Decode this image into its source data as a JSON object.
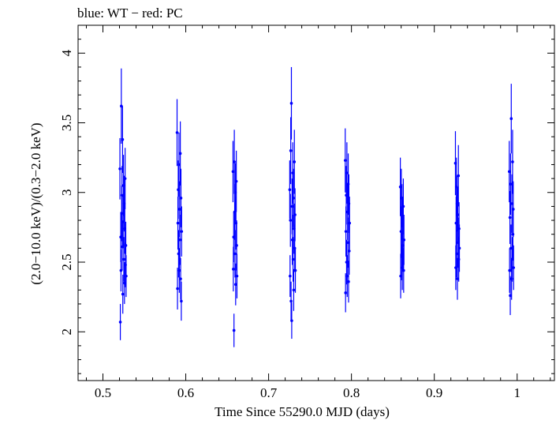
{
  "chart_data": {
    "type": "scatter",
    "title": "blue: WT − red: PC",
    "xlabel": "Time Since 55290.0 MJD (days)",
    "ylabel": "(2.0−10.0 keV)/(0.3−2.0 keV)",
    "xlim": [
      0.47,
      1.045
    ],
    "ylim": [
      1.65,
      4.2
    ],
    "xticks": [
      0.5,
      0.6,
      0.7,
      0.8,
      0.9,
      1.0
    ],
    "xtick_labels": [
      "0.5",
      "0.6",
      "0.7",
      "0.8",
      "0.9",
      "1"
    ],
    "yticks": [
      2.0,
      2.5,
      3.0,
      3.5,
      4.0
    ],
    "ytick_labels": [
      "2",
      "2.5",
      "3",
      "3.5",
      "4"
    ],
    "grid": false,
    "legend": "none",
    "colors": {
      "WT": "#0000ff",
      "PC": "#ff0000"
    },
    "series": [
      {
        "name": "WT",
        "points": [
          [
            0.5205,
            3.17,
            0.22
          ],
          [
            0.521,
            2.07,
            0.13
          ],
          [
            0.5215,
            2.68,
            0.18
          ],
          [
            0.5218,
            2.44,
            0.15
          ],
          [
            0.5222,
            3.62,
            0.27
          ],
          [
            0.5226,
            2.85,
            0.2
          ],
          [
            0.523,
            2.98,
            0.21
          ],
          [
            0.5233,
            2.61,
            0.17
          ],
          [
            0.5237,
            3.38,
            0.24
          ],
          [
            0.524,
            2.27,
            0.14
          ],
          [
            0.5244,
            2.79,
            0.19
          ],
          [
            0.5248,
            3.05,
            0.22
          ],
          [
            0.5252,
            2.52,
            0.16
          ],
          [
            0.5256,
            2.92,
            0.2
          ],
          [
            0.526,
            2.35,
            0.15
          ],
          [
            0.5264,
            2.74,
            0.18
          ],
          [
            0.5268,
            3.1,
            0.22
          ],
          [
            0.5272,
            2.48,
            0.16
          ],
          [
            0.5276,
            2.62,
            0.17
          ],
          [
            0.528,
            2.4,
            0.15
          ],
          [
            0.5895,
            3.43,
            0.24
          ],
          [
            0.59,
            2.31,
            0.15
          ],
          [
            0.5905,
            2.78,
            0.19
          ],
          [
            0.5909,
            3.02,
            0.21
          ],
          [
            0.5913,
            2.56,
            0.17
          ],
          [
            0.5918,
            3.2,
            0.23
          ],
          [
            0.5922,
            2.44,
            0.16
          ],
          [
            0.5926,
            2.88,
            0.2
          ],
          [
            0.593,
            2.66,
            0.18
          ],
          [
            0.5934,
            3.28,
            0.23
          ],
          [
            0.5938,
            2.38,
            0.15
          ],
          [
            0.5942,
            2.96,
            0.21
          ],
          [
            0.5946,
            2.22,
            0.14
          ],
          [
            0.595,
            2.72,
            0.18
          ],
          [
            0.657,
            3.15,
            0.22
          ],
          [
            0.6574,
            2.45,
            0.16
          ],
          [
            0.6578,
            2.68,
            0.18
          ],
          [
            0.6582,
            2.01,
            0.12
          ],
          [
            0.6586,
            3.22,
            0.23
          ],
          [
            0.659,
            2.86,
            0.2
          ],
          [
            0.6594,
            2.56,
            0.17
          ],
          [
            0.6598,
            3.0,
            0.21
          ],
          [
            0.6602,
            2.34,
            0.15
          ],
          [
            0.6606,
            2.78,
            0.19
          ],
          [
            0.661,
            3.08,
            0.22
          ],
          [
            0.6614,
            2.62,
            0.18
          ],
          [
            0.6618,
            2.4,
            0.16
          ],
          [
            0.7255,
            3.02,
            0.21
          ],
          [
            0.7259,
            2.4,
            0.15
          ],
          [
            0.7263,
            2.8,
            0.19
          ],
          [
            0.7267,
            3.3,
            0.24
          ],
          [
            0.7271,
            2.22,
            0.14
          ],
          [
            0.7275,
            3.64,
            0.26
          ],
          [
            0.7279,
            2.08,
            0.13
          ],
          [
            0.7283,
            2.9,
            0.2
          ],
          [
            0.7287,
            2.66,
            0.18
          ],
          [
            0.7291,
            3.14,
            0.22
          ],
          [
            0.7295,
            2.52,
            0.16
          ],
          [
            0.7299,
            2.96,
            0.21
          ],
          [
            0.7303,
            2.3,
            0.15
          ],
          [
            0.7307,
            2.74,
            0.18
          ],
          [
            0.7311,
            3.22,
            0.23
          ],
          [
            0.7315,
            2.6,
            0.17
          ],
          [
            0.7319,
            2.84,
            0.19
          ],
          [
            0.7323,
            2.44,
            0.16
          ],
          [
            0.7925,
            3.23,
            0.23
          ],
          [
            0.7929,
            2.28,
            0.14
          ],
          [
            0.7933,
            2.72,
            0.18
          ],
          [
            0.7937,
            2.98,
            0.21
          ],
          [
            0.7941,
            2.5,
            0.16
          ],
          [
            0.7945,
            3.14,
            0.22
          ],
          [
            0.7949,
            2.4,
            0.15
          ],
          [
            0.7953,
            2.86,
            0.2
          ],
          [
            0.7957,
            2.64,
            0.18
          ],
          [
            0.7961,
            3.06,
            0.22
          ],
          [
            0.7965,
            2.36,
            0.15
          ],
          [
            0.7969,
            2.92,
            0.21
          ],
          [
            0.7973,
            2.58,
            0.17
          ],
          [
            0.7977,
            2.78,
            0.19
          ],
          [
            0.859,
            3.04,
            0.21
          ],
          [
            0.8594,
            2.4,
            0.16
          ],
          [
            0.8598,
            2.72,
            0.18
          ],
          [
            0.8602,
            2.96,
            0.21
          ],
          [
            0.8606,
            2.54,
            0.17
          ],
          [
            0.861,
            2.86,
            0.2
          ],
          [
            0.8614,
            2.46,
            0.16
          ],
          [
            0.8618,
            2.78,
            0.19
          ],
          [
            0.8622,
            2.62,
            0.18
          ],
          [
            0.8626,
            2.9,
            0.2
          ],
          [
            0.863,
            2.44,
            0.16
          ],
          [
            0.8634,
            2.66,
            0.18
          ],
          [
            0.9255,
            3.21,
            0.23
          ],
          [
            0.9259,
            2.46,
            0.16
          ],
          [
            0.9263,
            2.78,
            0.19
          ],
          [
            0.9267,
            3.04,
            0.21
          ],
          [
            0.9271,
            2.56,
            0.17
          ],
          [
            0.9275,
            2.92,
            0.2
          ],
          [
            0.9279,
            2.38,
            0.15
          ],
          [
            0.9283,
            2.84,
            0.2
          ],
          [
            0.9287,
            2.64,
            0.18
          ],
          [
            0.9291,
            3.12,
            0.22
          ],
          [
            0.9295,
            2.52,
            0.16
          ],
          [
            0.9299,
            2.74,
            0.19
          ],
          [
            0.9303,
            2.6,
            0.17
          ],
          [
            0.9905,
            3.15,
            0.22
          ],
          [
            0.9909,
            2.44,
            0.16
          ],
          [
            0.9913,
            2.82,
            0.19
          ],
          [
            0.9917,
            2.26,
            0.14
          ],
          [
            0.9921,
            3.06,
            0.22
          ],
          [
            0.9925,
            2.6,
            0.17
          ],
          [
            0.9929,
            3.53,
            0.25
          ],
          [
            0.9933,
            2.38,
            0.15
          ],
          [
            0.9937,
            2.92,
            0.21
          ],
          [
            0.9941,
            2.52,
            0.16
          ],
          [
            0.9945,
            3.22,
            0.23
          ],
          [
            0.9949,
            2.7,
            0.18
          ],
          [
            0.9953,
            2.88,
            0.2
          ],
          [
            0.9957,
            2.46,
            0.16
          ]
        ]
      }
    ]
  }
}
